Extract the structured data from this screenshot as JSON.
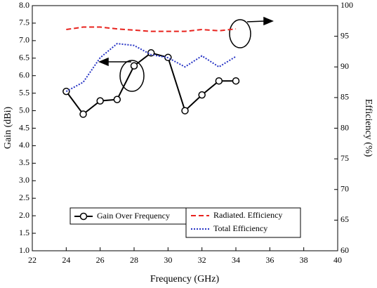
{
  "chart_data": {
    "type": "line",
    "x_label": "Frequency (GHz)",
    "y_label": "Gain (dBi)",
    "y2_label": "Efficiency (%)",
    "x": [
      24,
      25,
      26,
      27,
      28,
      29,
      30,
      31,
      32,
      33,
      34
    ],
    "series": [
      {
        "name": "Gain Over Frequency",
        "color": "#000000",
        "marker": "circle",
        "values": [
          5.55,
          4.9,
          5.28,
          5.32,
          6.28,
          6.65,
          6.52,
          5.0,
          5.45,
          5.85,
          5.85
        ]
      },
      {
        "name": "Radiated. Efficiency",
        "color": "#e8231e",
        "dash": "dashed",
        "axis": "y2",
        "values": [
          96.1,
          96.5,
          96.5,
          96.2,
          96,
          95.8,
          95.8,
          95.8,
          96.1,
          95.9,
          96.2
        ]
      },
      {
        "name": "Total Efficiency",
        "color": "#2633c4",
        "dash": "dotted",
        "axis": "y2",
        "values": [
          86,
          87.5,
          91.5,
          93.8,
          93.5,
          92,
          91.5,
          90,
          91.8,
          90,
          91.7
        ]
      }
    ],
    "xlim": [
      22,
      40
    ],
    "xticks": [
      22,
      24,
      26,
      28,
      30,
      32,
      34,
      36,
      38,
      40
    ],
    "ylim": [
      1.0,
      8.0
    ],
    "yticks": [
      {
        "value": 1,
        "label": "1.0"
      },
      {
        "value": 1.5,
        "label": "1.5"
      },
      {
        "value": 2,
        "label": "2.0"
      },
      {
        "value": 2.5,
        "label": "2.5"
      },
      {
        "value": 3,
        "label": "3.0"
      },
      {
        "value": 3.5,
        "label": "3.5"
      },
      {
        "value": 4,
        "label": "4.0"
      },
      {
        "value": 4.5,
        "label": "4.5"
      },
      {
        "value": 5,
        "label": "5.0"
      },
      {
        "value": 5.5,
        "label": "5.5"
      },
      {
        "value": 6,
        "label": "6.0"
      },
      {
        "value": 6.5,
        "label": "6.5"
      },
      {
        "value": 7,
        "label": "7.0"
      },
      {
        "value": 7.5,
        "label": "7.5"
      },
      {
        "value": 8,
        "label": "8.0"
      }
    ],
    "y2lim": [
      60,
      100
    ],
    "y2ticks": [
      60,
      65,
      70,
      75,
      80,
      85,
      90,
      95,
      100
    ]
  }
}
